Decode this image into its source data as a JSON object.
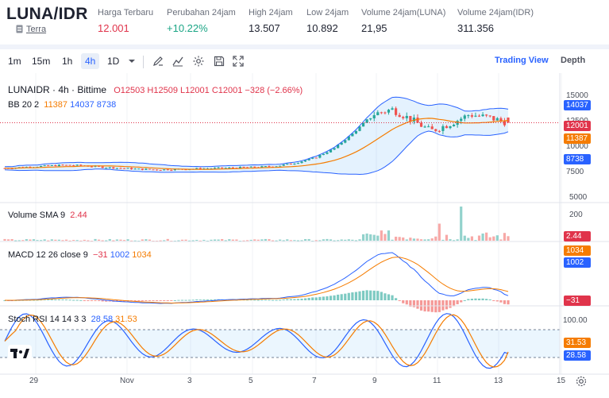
{
  "header": {
    "pair": "LUNA/IDR",
    "coin_link": "Terra",
    "stats": [
      {
        "label": "Harga Terbaru",
        "value": "12.001",
        "tone": "red"
      },
      {
        "label": "Perubahan 24jam",
        "value": "+10.22%",
        "tone": "green"
      },
      {
        "label": "High 24jam",
        "value": "13.507",
        "tone": ""
      },
      {
        "label": "Low 24jam",
        "value": "10.892",
        "tone": ""
      },
      {
        "label": "Volume 24jam(LUNA)",
        "value": "21,95",
        "tone": ""
      },
      {
        "label": "Volume 24jam(IDR)",
        "value": "311.356",
        "tone": ""
      }
    ]
  },
  "toolbar": {
    "timeframes": [
      "1m",
      "15m",
      "1h",
      "4h",
      "1D"
    ],
    "active_timeframe": "4h",
    "tools": [
      "chevron-down-icon",
      "draw-icon",
      "indicator-icon",
      "gear-icon",
      "save-icon",
      "fullscreen-icon"
    ],
    "view_buttons": [
      "Trading View",
      "Depth"
    ],
    "active_view": "Trading View"
  },
  "legend": {
    "symbol": "LUNAIDR · 4h · Bittime",
    "o_label": "O",
    "o": "12503",
    "h_label": "H",
    "h": "12509",
    "l_label": "L",
    "l": "12001",
    "c_label": "C",
    "c": "12001",
    "change": "−328 (−2.66%)",
    "bb_label": "BB 20 2",
    "bb_basis": "11387",
    "bb_upper": "14037",
    "bb_lower": "8738",
    "volume_label": "Volume SMA 9",
    "volume_val": "2.44",
    "macd_label": "MACD 12 26 close 9",
    "macd_hist": "−31",
    "macd_line": "1002",
    "macd_signal": "1034",
    "stoch_label": "Stoch RSI 14 14 3 3",
    "stoch_k": "28.58",
    "stoch_d": "31.53"
  },
  "axes": {
    "price_ticks": [
      "15000",
      "12500",
      "10000",
      "7500",
      "5000"
    ],
    "price_badges": [
      {
        "value": "14037",
        "color": "#2962ff"
      },
      {
        "value": "12001",
        "color": "#e0344b"
      },
      {
        "value": "11387",
        "color": "#f57c00"
      },
      {
        "value": "8738",
        "color": "#2962ff"
      }
    ],
    "volume_ticks": [
      "200"
    ],
    "volume_badge": "2.44",
    "macd_badges": [
      {
        "value": "1034",
        "color": "#f57c00"
      },
      {
        "value": "1002",
        "color": "#2962ff"
      }
    ],
    "macd_hist_badge": "−31",
    "stoch_ticks": [
      "100.00"
    ],
    "stoch_badges": [
      {
        "value": "31.53",
        "color": "#f57c00"
      },
      {
        "value": "28.58",
        "color": "#2962ff"
      }
    ],
    "x_labels": [
      "29",
      "Nov",
      "3",
      "5",
      "7",
      "9",
      "11",
      "13",
      "15"
    ]
  },
  "colors": {
    "up": "#26a69a",
    "down": "#ef5350",
    "bb": "#2962ff",
    "basis": "#f57c00",
    "accent": "#2962ff"
  },
  "chart_data": {
    "type": "line",
    "series": [
      {
        "name": "LUNAIDR",
        "values": [
          7600,
          7700,
          7800,
          7900,
          7850,
          7700,
          7600,
          7500,
          7450,
          7500,
          7550,
          7600,
          7650,
          7700,
          7800,
          8100,
          8600,
          9500,
          11000,
          12800,
          13300,
          12300,
          11200,
          11900,
          12800,
          12500,
          12001
        ]
      }
    ],
    "ylim": [
      4500,
      16500
    ]
  }
}
